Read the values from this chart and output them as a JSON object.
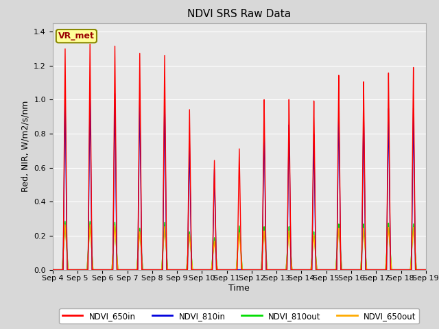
{
  "title": "NDVI SRS Raw Data",
  "ylabel": "Red, NIR, W/m2/s/nm",
  "xlabel": "Time",
  "ylim": [
    0,
    1.45
  ],
  "yticks": [
    0.0,
    0.2,
    0.4,
    0.6,
    0.8,
    1.0,
    1.2,
    1.4
  ],
  "background_color": "#d8d8d8",
  "plot_bg_color": "#e8e8e8",
  "annotation_text": "VR_met",
  "annotation_color": "#990000",
  "annotation_bg": "#ffff99",
  "annotation_border": "#888800",
  "legend_entries": [
    "NDVI_650in",
    "NDVI_810in",
    "NDVI_810out",
    "NDVI_650out"
  ],
  "legend_colors": [
    "#ff0000",
    "#0000dd",
    "#00dd00",
    "#ffaa00"
  ],
  "colors": {
    "NDVI_650in": "#ff0000",
    "NDVI_810in": "#0000dd",
    "NDVI_810out": "#00dd00",
    "NDVI_650out": "#ffaa00"
  },
  "day_peaks": {
    "Sep4": {
      "NDVI_650in": 1.3,
      "NDVI_810in": 1.04,
      "NDVI_810out": 0.285,
      "NDVI_650out": 0.265
    },
    "Sep5": {
      "NDVI_650in": 1.33,
      "NDVI_810in": 1.04,
      "NDVI_810out": 0.285,
      "NDVI_650out": 0.265
    },
    "Sep6": {
      "NDVI_650in": 1.32,
      "NDVI_810in": 1.04,
      "NDVI_810out": 0.28,
      "NDVI_650out": 0.26
    },
    "Sep7": {
      "NDVI_650in": 1.28,
      "NDVI_810in": 1.03,
      "NDVI_810out": 0.245,
      "NDVI_650out": 0.225
    },
    "Sep8": {
      "NDVI_650in": 1.27,
      "NDVI_810in": 1.03,
      "NDVI_810out": 0.28,
      "NDVI_650out": 0.255
    },
    "Sep9": {
      "NDVI_650in": 0.95,
      "NDVI_810in": 0.76,
      "NDVI_810out": 0.225,
      "NDVI_650out": 0.21
    },
    "Sep10": {
      "NDVI_650in": 0.65,
      "NDVI_810in": 0.595,
      "NDVI_810out": 0.19,
      "NDVI_650out": 0.17
    },
    "Sep11": {
      "NDVI_650in": 0.72,
      "NDVI_810in": 0.0,
      "NDVI_810out": 0.26,
      "NDVI_650out": 0.22
    },
    "Sep12": {
      "NDVI_650in": 1.01,
      "NDVI_810in": 0.86,
      "NDVI_810out": 0.255,
      "NDVI_650out": 0.23
    },
    "Sep13": {
      "NDVI_650in": 1.01,
      "NDVI_810in": 0.86,
      "NDVI_810out": 0.255,
      "NDVI_650out": 0.23
    },
    "Sep14": {
      "NDVI_650in": 1.0,
      "NDVI_810in": 0.8,
      "NDVI_810out": 0.225,
      "NDVI_650out": 0.205
    },
    "Sep15": {
      "NDVI_650in": 1.15,
      "NDVI_810in": 0.96,
      "NDVI_810out": 0.27,
      "NDVI_650out": 0.245
    },
    "Sep16": {
      "NDVI_650in": 1.11,
      "NDVI_810in": 0.94,
      "NDVI_810out": 0.27,
      "NDVI_650out": 0.245
    },
    "Sep17": {
      "NDVI_650in": 1.16,
      "NDVI_810in": 0.95,
      "NDVI_810out": 0.275,
      "NDVI_650out": 0.25
    },
    "Sep18": {
      "NDVI_650in": 1.19,
      "NDVI_810in": 0.95,
      "NDVI_810out": 0.27,
      "NDVI_650out": 0.25
    }
  },
  "xticklabels": [
    "Sep 4",
    "Sep 5",
    "Sep 6",
    "Sep 7",
    "Sep 8",
    "Sep 9",
    "Sep 10",
    "Sep 11",
    "Sep 12",
    "Sep 13",
    "Sep 14",
    "Sep 15",
    "Sep 16",
    "Sep 17",
    "Sep 18",
    "Sep 19"
  ],
  "title_fontsize": 11,
  "axis_label_fontsize": 9,
  "tick_fontsize": 8
}
